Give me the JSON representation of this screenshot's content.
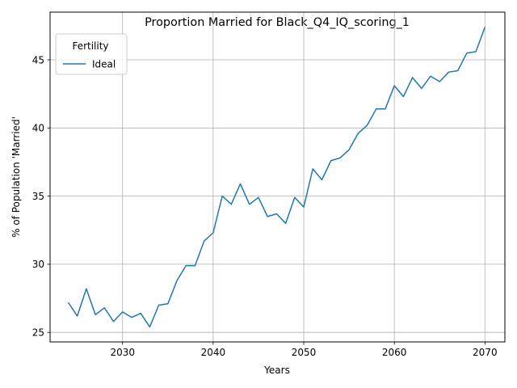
{
  "chart_data": {
    "type": "line",
    "title": "Proportion Married for Black_Q4_IQ_scoring_1",
    "xlabel": "Years",
    "ylabel": "% of Population 'Married'",
    "xlim": [
      2022,
      2072.2
    ],
    "ylim": [
      24.3,
      48.5
    ],
    "xticks": [
      2030,
      2040,
      2050,
      2060,
      2070
    ],
    "yticks": [
      25,
      30,
      35,
      40,
      45
    ],
    "xtick_labels": [
      "2030",
      "2040",
      "2050",
      "2060",
      "2070"
    ],
    "ytick_labels": [
      "25",
      "30",
      "35",
      "40",
      "45"
    ],
    "grid": true,
    "legend": {
      "title": "Fertility",
      "placement": "top-left"
    },
    "series": [
      {
        "name": "Ideal",
        "color": "#1f77b4",
        "x": [
          2024,
          2025,
          2026,
          2027,
          2028,
          2029,
          2030,
          2031,
          2032,
          2033,
          2034,
          2035,
          2036,
          2037,
          2038,
          2039,
          2040,
          2041,
          2042,
          2043,
          2044,
          2045,
          2046,
          2047,
          2048,
          2049,
          2050,
          2051,
          2052,
          2053,
          2054,
          2055,
          2056,
          2057,
          2058,
          2059,
          2060,
          2061,
          2062,
          2063,
          2064,
          2065,
          2066,
          2067,
          2068,
          2069,
          2070
        ],
        "values": [
          27.2,
          26.2,
          28.2,
          26.3,
          26.8,
          25.8,
          26.5,
          26.1,
          26.4,
          25.4,
          27.0,
          27.1,
          28.8,
          29.9,
          29.9,
          31.7,
          32.3,
          35.0,
          34.4,
          35.9,
          34.4,
          34.9,
          33.5,
          33.7,
          33.0,
          34.9,
          34.2,
          37.0,
          36.2,
          37.6,
          37.8,
          38.4,
          39.6,
          40.2,
          41.4,
          41.4,
          43.1,
          42.3,
          43.7,
          42.9,
          43.8,
          43.4,
          44.1,
          44.2,
          45.5,
          45.6,
          47.4
        ]
      }
    ]
  }
}
